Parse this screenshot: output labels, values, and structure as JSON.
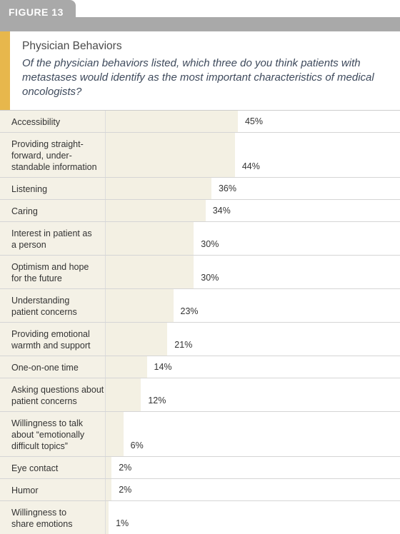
{
  "figure_label": "FIGURE 13",
  "chart_data": {
    "type": "hbar",
    "title": "Physician Behaviors",
    "subtitle": "Of the physician behaviors listed, which three do you think patients with metastases would identify as the most important characteristics of medical oncologists?",
    "categories": [
      "Accessibility",
      "Providing straight-\nforward, under-\nstandable information",
      "Listening",
      "Caring",
      "Interest in patient as\na person",
      "Optimism and hope\nfor the future",
      "Understanding\npatient concerns",
      "Providing emotional\nwarmth and support",
      "One-on-one time",
      "Asking questions about\npatient concerns",
      "Willingness to talk\nabout “emotionally\ndifficult topics”",
      "Eye contact",
      "Humor",
      "Willingness to\nshare emotions"
    ],
    "values": [
      45,
      44,
      36,
      34,
      30,
      30,
      23,
      21,
      14,
      12,
      6,
      2,
      2,
      1
    ],
    "value_labels": [
      "45%",
      "44%",
      "36%",
      "34%",
      "30%",
      "30%",
      "23%",
      "21%",
      "14%",
      "12%",
      "6%",
      "2%",
      "2%",
      "1%"
    ],
    "color": "#f3f0e3",
    "xlim": [
      0,
      100
    ]
  }
}
